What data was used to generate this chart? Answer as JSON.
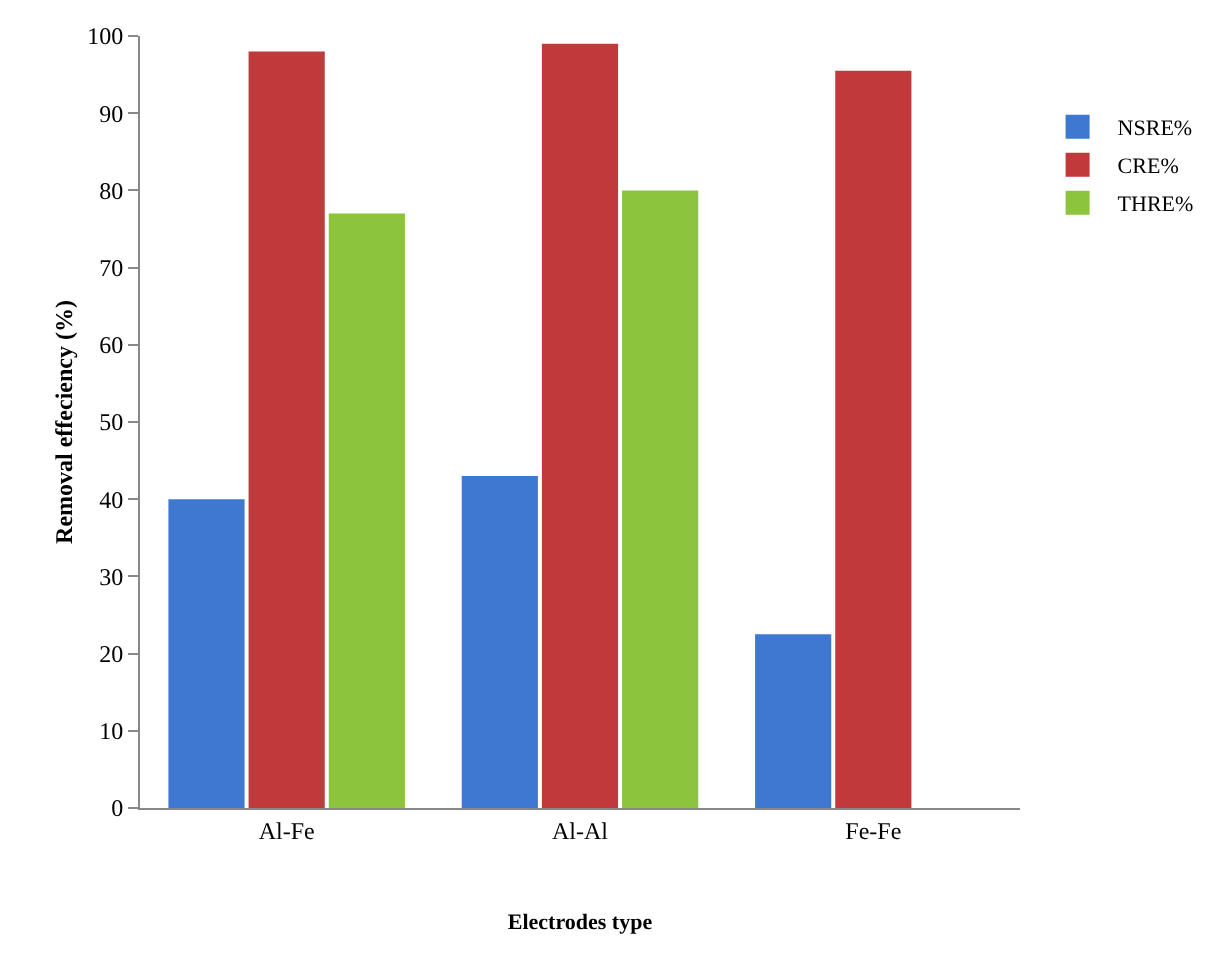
{
  "chart_data": {
    "type": "bar",
    "xlabel": "Electrodes type",
    "ylabel": "Removal effeciency (%)",
    "categories": [
      "Al-Fe",
      "Al-Al",
      "Fe-Fe"
    ],
    "series": [
      {
        "name": "NSRE%",
        "color": "#3f78d0",
        "values": [
          40,
          43,
          22.5
        ]
      },
      {
        "name": "CRE%",
        "color": "#c0393b",
        "values": [
          98,
          99,
          95.5
        ]
      },
      {
        "name": "THRE%",
        "color": "#8cc43c",
        "values": [
          77,
          80,
          null
        ]
      }
    ],
    "ylim": [
      0,
      100
    ],
    "yticks": [
      0,
      10,
      20,
      30,
      40,
      50,
      60,
      70,
      80,
      90,
      100
    ],
    "grid": false,
    "legend": "top right"
  }
}
